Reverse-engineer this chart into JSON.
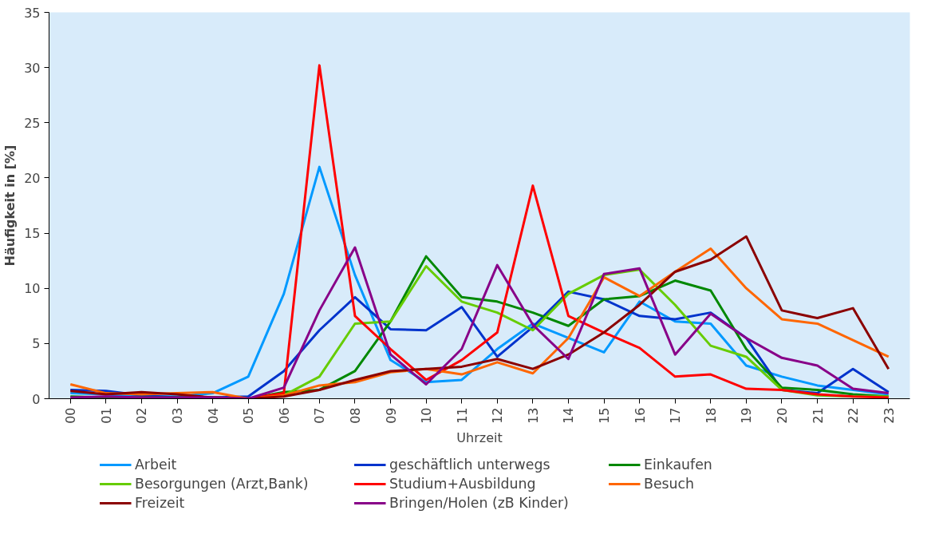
{
  "chart_data": {
    "type": "line",
    "xlabel": "Uhrzeit",
    "ylabel": "Häufigkeit in [%]",
    "categories": [
      "00",
      "01",
      "02",
      "03",
      "04",
      "05",
      "06",
      "07",
      "08",
      "09",
      "10",
      "11",
      "12",
      "13",
      "14",
      "15",
      "16",
      "17",
      "18",
      "19",
      "20",
      "21",
      "22",
      "23"
    ],
    "ylim": [
      0,
      35
    ],
    "yticks": [
      0,
      5,
      10,
      15,
      20,
      25,
      30,
      35
    ],
    "grid": false,
    "legend": "bottom",
    "line_style": "solid",
    "marker": "none",
    "series": [
      {
        "name": "Arbeit",
        "color": "#0099ff",
        "values": [
          0.5,
          0.4,
          0.2,
          0.2,
          0.5,
          2,
          9.5,
          21,
          11.2,
          3.5,
          1.5,
          1.7,
          4.5,
          6.8,
          5.5,
          4.2,
          8.8,
          7,
          6.8,
          3,
          2,
          1.2,
          0.8,
          0.4
        ]
      },
      {
        "name": "geschäftlich unterwegs",
        "color": "#0033cc",
        "values": [
          0.8,
          0.7,
          0.3,
          0.1,
          0.1,
          0.2,
          2.5,
          6.2,
          9.2,
          6.3,
          6.2,
          8.3,
          3.8,
          6.5,
          9.7,
          9,
          7.5,
          7.2,
          7.8,
          5.5,
          0.8,
          0.5,
          2.7,
          0.6
        ]
      },
      {
        "name": "Einkaufen",
        "color": "#008800",
        "values": [
          0.2,
          0.1,
          0.1,
          0.1,
          0.1,
          0,
          0.6,
          0.8,
          2.5,
          7,
          12.9,
          9.2,
          8.8,
          7.8,
          6.6,
          9,
          9.3,
          10.7,
          9.8,
          4.5,
          1,
          0.8,
          0.4,
          0.2
        ]
      },
      {
        "name": "Besorgungen (Arzt,Bank)",
        "color": "#66cc00",
        "values": [
          null,
          null,
          null,
          null,
          null,
          0,
          0.3,
          2,
          6.8,
          7,
          12,
          8.8,
          7.8,
          6.2,
          9.5,
          11.2,
          11.7,
          8.5,
          4.8,
          3.8,
          0.8,
          0.3,
          0.2,
          0.2
        ]
      },
      {
        "name": "Studium+Ausbildung",
        "color": "#ff0000",
        "values": [
          null,
          null,
          null,
          null,
          0.1,
          0,
          0.5,
          30.2,
          7.5,
          4.5,
          1.7,
          3.5,
          6,
          19.3,
          7.5,
          6,
          4.6,
          2,
          2.2,
          0.9,
          0.8,
          0.4,
          0.2,
          0.1
        ]
      },
      {
        "name": "Besuch",
        "color": "#ff6600",
        "values": [
          1.3,
          0.5,
          0.4,
          0.5,
          0.6,
          0,
          0.3,
          1.2,
          1.5,
          2.4,
          2.7,
          2.2,
          3.3,
          2.3,
          5.5,
          11,
          9.3,
          11.5,
          13.6,
          10,
          7.2,
          6.8,
          5.3,
          3.8
        ]
      },
      {
        "name": "Freizeit",
        "color": "#8b0000",
        "values": [
          0.7,
          0.4,
          0.6,
          0.4,
          0.1,
          0,
          0.2,
          0.8,
          1.7,
          2.5,
          2.7,
          2.9,
          3.6,
          2.7,
          4,
          6,
          8.5,
          11.5,
          12.6,
          14.7,
          8,
          7.3,
          8.2,
          2.7
        ]
      },
      {
        "name": "Bringen/Holen (zB Kinder)",
        "color": "#880088",
        "values": [
          0.1,
          0.2,
          0.1,
          0.1,
          0.1,
          0,
          1,
          8,
          13.7,
          4,
          1.3,
          4.5,
          12.1,
          6.7,
          3.6,
          11.3,
          11.8,
          4,
          7.7,
          5.5,
          3.7,
          3,
          0.9,
          0.5
        ]
      }
    ]
  }
}
